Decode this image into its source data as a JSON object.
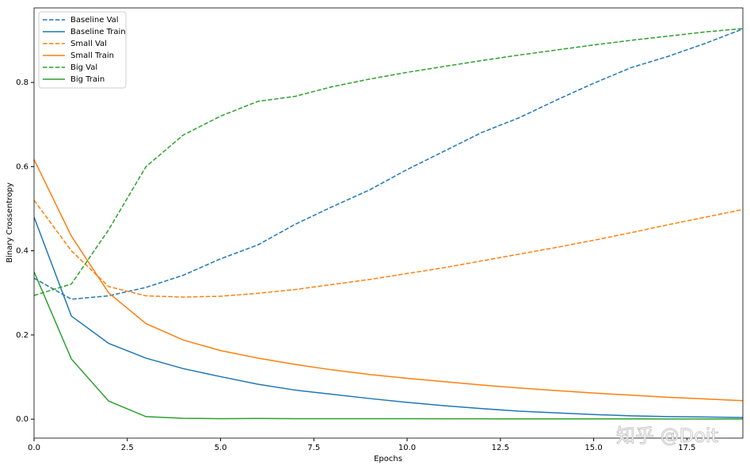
{
  "chart_data": {
    "type": "line",
    "x_label": "Epochs",
    "y_label": "Binary Crossentropy",
    "x": [
      0,
      1,
      2,
      3,
      4,
      5,
      6,
      7,
      8,
      9,
      10,
      11,
      12,
      13,
      14,
      15,
      16,
      17,
      18,
      19
    ],
    "series": [
      {
        "name": "Baseline Val",
        "color": "#1f77b4",
        "linestyle": "dashed",
        "values": [
          0.335,
          0.285,
          0.293,
          0.313,
          0.342,
          0.381,
          0.414,
          0.463,
          0.505,
          0.545,
          0.593,
          0.637,
          0.681,
          0.716,
          0.758,
          0.798,
          0.835,
          0.862,
          0.893,
          0.927
        ]
      },
      {
        "name": "Baseline Train",
        "color": "#1f77b4",
        "linestyle": "solid",
        "values": [
          0.48,
          0.245,
          0.18,
          0.145,
          0.12,
          0.101,
          0.083,
          0.069,
          0.059,
          0.049,
          0.04,
          0.032,
          0.025,
          0.019,
          0.015,
          0.011,
          0.008,
          0.006,
          0.005,
          0.004
        ]
      },
      {
        "name": "Small Val",
        "color": "#ff7f0e",
        "linestyle": "dashed",
        "values": [
          0.52,
          0.4,
          0.315,
          0.293,
          0.29,
          0.292,
          0.299,
          0.308,
          0.32,
          0.332,
          0.346,
          0.36,
          0.376,
          0.392,
          0.408,
          0.425,
          0.443,
          0.462,
          0.48,
          0.498
        ]
      },
      {
        "name": "Small Train",
        "color": "#ff7f0e",
        "linestyle": "solid",
        "values": [
          0.617,
          0.435,
          0.3,
          0.227,
          0.188,
          0.163,
          0.145,
          0.13,
          0.117,
          0.106,
          0.097,
          0.089,
          0.081,
          0.074,
          0.068,
          0.062,
          0.057,
          0.052,
          0.048,
          0.044
        ]
      },
      {
        "name": "Big Val",
        "color": "#2ca02c",
        "linestyle": "dashed",
        "values": [
          0.294,
          0.321,
          0.45,
          0.6,
          0.675,
          0.72,
          0.755,
          0.767,
          0.79,
          0.808,
          0.824,
          0.838,
          0.852,
          0.865,
          0.877,
          0.889,
          0.9,
          0.91,
          0.92,
          0.928
        ]
      },
      {
        "name": "Big Train",
        "color": "#2ca02c",
        "linestyle": "solid",
        "values": [
          0.35,
          0.143,
          0.043,
          0.006,
          0.002,
          0.001,
          0.0015,
          0.001,
          0.001,
          0.001,
          0.001,
          0.0008,
          0.0008,
          0.0007,
          0.0007,
          0.0006,
          0.0006,
          0.0005,
          0.0005,
          0.0005
        ]
      }
    ],
    "xlim": [
      0,
      19
    ],
    "ylim": [
      -0.045,
      0.977
    ],
    "xticks": [
      {
        "value": 0,
        "label": "0.0"
      },
      2.5,
      {
        "value": 5,
        "label": "5.0"
      },
      7.5,
      {
        "value": 10,
        "label": "10.0"
      },
      12.5,
      {
        "value": 15,
        "label": "15.0"
      },
      17.5
    ],
    "yticks": [
      {
        "value": 0,
        "label": "0.0"
      },
      0.2,
      0.4,
      0.6,
      0.8
    ],
    "legend": "upper left",
    "grid": false,
    "watermark": "知乎 @Doit"
  }
}
